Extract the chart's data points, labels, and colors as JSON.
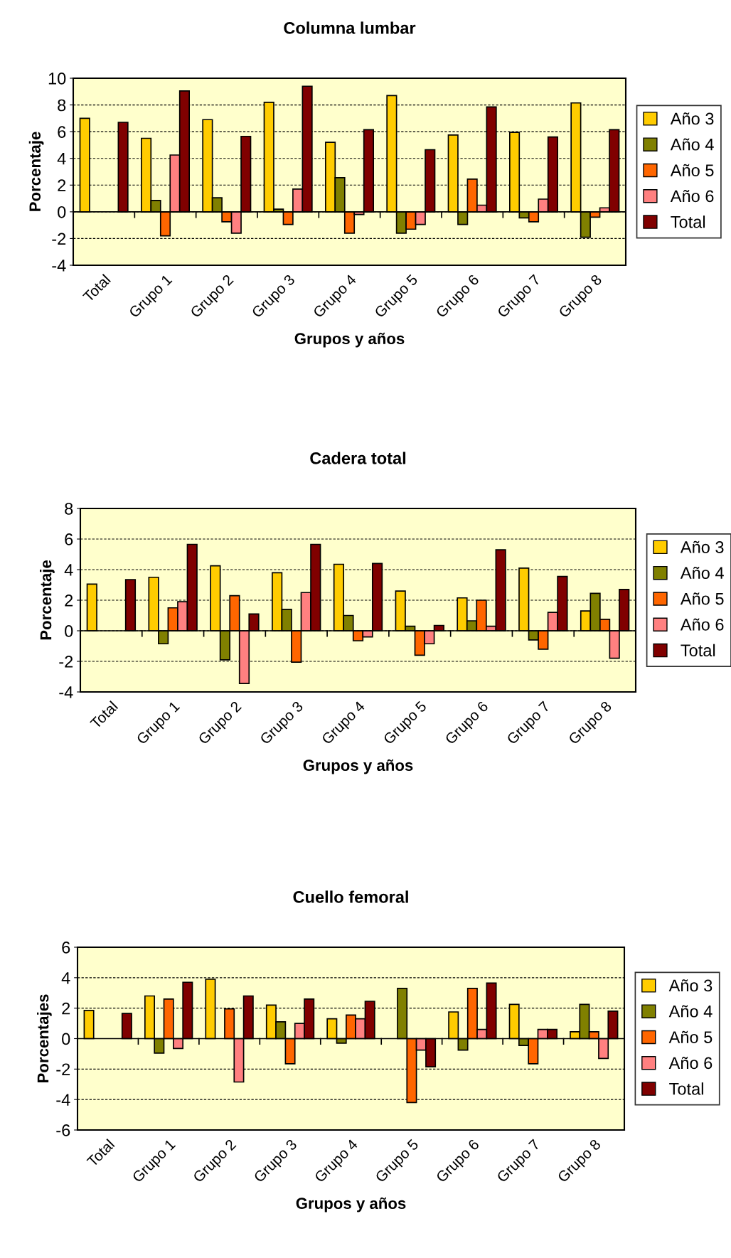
{
  "chart_data": [
    {
      "type": "bar",
      "title": "Columna lumbar",
      "xlabel": "Grupos y años",
      "ylabel": "Porcentaje",
      "categories": [
        "Total",
        "Grupo 1",
        "Grupo 2",
        "Grupo 3",
        "Grupo 4",
        "Grupo 5",
        "Grupo 6",
        "Grupo 7",
        "Grupo 8"
      ],
      "ylim": [
        -4,
        10
      ],
      "yticks": [
        -4,
        -2,
        0,
        2,
        4,
        6,
        8,
        10
      ],
      "grid": "y",
      "legend": "right",
      "series": [
        {
          "name": "Año 3",
          "color": "#ffcc00",
          "values": [
            7.0,
            5.5,
            6.9,
            8.2,
            5.2,
            8.7,
            5.75,
            5.95,
            8.15
          ]
        },
        {
          "name": "Año 4",
          "color": "#808000",
          "values": [
            null,
            0.85,
            1.05,
            0.2,
            2.55,
            -1.6,
            -0.95,
            -0.45,
            -1.9
          ]
        },
        {
          "name": "Año 5",
          "color": "#ff6600",
          "values": [
            null,
            -1.8,
            -0.75,
            -0.95,
            -1.6,
            -1.3,
            2.45,
            -0.75,
            -0.4
          ]
        },
        {
          "name": "Año 6",
          "color": "#ff8080",
          "values": [
            null,
            4.25,
            -1.6,
            1.7,
            -0.2,
            -0.95,
            0.5,
            0.95,
            0.3
          ]
        },
        {
          "name": "Total",
          "color": "#800000",
          "values": [
            6.7,
            9.05,
            5.65,
            9.4,
            6.15,
            4.65,
            7.85,
            5.6,
            6.15
          ]
        }
      ]
    },
    {
      "type": "bar",
      "title": "Cadera total",
      "xlabel": "Grupos y años",
      "ylabel": "Porcentaje",
      "categories": [
        "Total",
        "Grupo 1",
        "Grupo 2",
        "Grupo 3",
        "Grupo 4",
        "Grupo 5",
        "Grupo 6",
        "Grupo 7",
        "Grupo 8"
      ],
      "ylim": [
        -4,
        8
      ],
      "yticks": [
        -4,
        -2,
        0,
        2,
        4,
        6,
        8
      ],
      "grid": "y",
      "legend": "right",
      "series": [
        {
          "name": "Año 3",
          "color": "#ffcc00",
          "values": [
            3.05,
            3.5,
            4.25,
            3.8,
            4.35,
            2.6,
            2.15,
            4.1,
            1.3
          ]
        },
        {
          "name": "Año 4",
          "color": "#808000",
          "values": [
            null,
            -0.85,
            -1.9,
            1.4,
            1.0,
            0.3,
            0.65,
            -0.6,
            2.45
          ]
        },
        {
          "name": "Año 5",
          "color": "#ff6600",
          "values": [
            null,
            1.5,
            2.3,
            -2.05,
            -0.65,
            -1.6,
            2.0,
            -1.2,
            0.75
          ]
        },
        {
          "name": "Año 6",
          "color": "#ff8080",
          "values": [
            null,
            1.9,
            -3.45,
            2.5,
            -0.4,
            -0.85,
            0.3,
            1.2,
            -1.8
          ]
        },
        {
          "name": "Total",
          "color": "#800000",
          "values": [
            3.35,
            5.65,
            1.1,
            5.65,
            4.4,
            0.35,
            5.3,
            3.55,
            2.7
          ]
        }
      ]
    },
    {
      "type": "bar",
      "title": "Cuello femoral",
      "xlabel": "Grupos y años",
      "ylabel": "Porcentajes",
      "categories": [
        "Total",
        "Grupo 1",
        "Grupo 2",
        "Grupo 3",
        "Grupo 4",
        "Grupo 5",
        "Grupo 6",
        "Grupo 7",
        "Grupo 8"
      ],
      "ylim": [
        -6,
        6
      ],
      "yticks": [
        -6,
        -4,
        -2,
        0,
        2,
        4,
        6
      ],
      "grid": "y",
      "legend": "right",
      "series": [
        {
          "name": "Año 3",
          "color": "#ffcc00",
          "values": [
            1.85,
            2.8,
            3.9,
            2.2,
            1.3,
            null,
            1.75,
            2.25,
            0.45
          ]
        },
        {
          "name": "Año 4",
          "color": "#808000",
          "values": [
            null,
            -0.95,
            null,
            1.1,
            -0.3,
            3.3,
            -0.75,
            -0.45,
            2.25
          ]
        },
        {
          "name": "Año 5",
          "color": "#ff6600",
          "values": [
            null,
            2.6,
            1.95,
            -1.65,
            1.55,
            -4.2,
            3.3,
            -1.65,
            0.45
          ]
        },
        {
          "name": "Año 6",
          "color": "#ff8080",
          "values": [
            null,
            -0.65,
            -2.85,
            1.0,
            1.3,
            -0.75,
            0.6,
            0.6,
            -1.3
          ]
        },
        {
          "name": "Total",
          "color": "#800000",
          "values": [
            1.65,
            3.7,
            2.8,
            2.6,
            2.45,
            -1.85,
            3.65,
            0.6,
            1.8
          ]
        }
      ]
    }
  ]
}
